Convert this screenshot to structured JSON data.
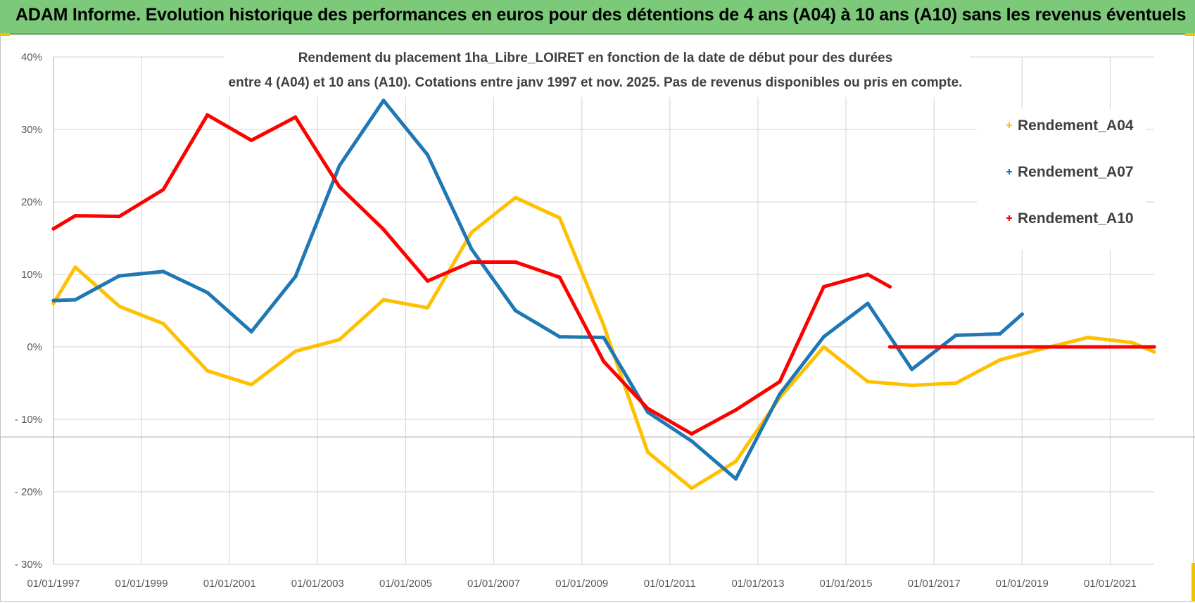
{
  "banner": {
    "title": "ADAM Informe. Evolution historique des performances en euros pour des détentions de 4 ans (A04) à 10 ans (A10) sans les revenus éventuels"
  },
  "colors": {
    "banner_bg": "#7dc97a",
    "A04": "#ffc000",
    "A07": "#1f77b4",
    "A10": "#ff0000",
    "grid": "#d9d9d9"
  },
  "chart_data": {
    "type": "line",
    "title": [
      "Rendement du placement 1ha_Libre_LOIRET en fonction de la date de début pour des durées",
      "entre 4 (A04) et 10 ans (A10).  Cotations entre janv 1997 et nov. 2025. Pas de revenus disponibles ou pris en compte."
    ],
    "xlabel": "",
    "ylabel": "",
    "x_range": [
      "1997-01-01",
      "2022-01-01"
    ],
    "x_tick_labels": [
      "01/01/1997",
      "01/01/1999",
      "01/01/2001",
      "01/01/2003",
      "01/01/2005",
      "01/01/2007",
      "01/01/2009",
      "01/01/2011",
      "01/01/2013",
      "01/01/2015",
      "01/01/2017",
      "01/01/2019",
      "01/01/2021"
    ],
    "y_tick_labels": [
      "40%",
      "30%",
      "20%",
      "10%",
      "0%",
      "- 10%",
      "- 20%",
      "- 30%"
    ],
    "ylim": [
      -30,
      40
    ],
    "grid": true,
    "legend_position": "right",
    "series": [
      {
        "name": "Rendement_A04",
        "color": "#ffc000",
        "points": [
          [
            "1997-01-01",
            6.0
          ],
          [
            "1997-07-01",
            11.0
          ],
          [
            "1998-07-01",
            5.6
          ],
          [
            "1999-07-01",
            3.2
          ],
          [
            "2000-07-01",
            -3.3
          ],
          [
            "2001-07-01",
            -5.2
          ],
          [
            "2002-07-01",
            -0.6
          ],
          [
            "2003-07-01",
            1.0
          ],
          [
            "2004-07-01",
            6.5
          ],
          [
            "2005-07-01",
            5.4
          ],
          [
            "2006-07-01",
            15.8
          ],
          [
            "2007-07-01",
            20.6
          ],
          [
            "2008-07-01",
            17.8
          ],
          [
            "2009-07-01",
            3.0
          ],
          [
            "2010-07-01",
            -14.5
          ],
          [
            "2011-07-01",
            -19.5
          ],
          [
            "2012-07-01",
            -15.8
          ],
          [
            "2013-07-01",
            -7.0
          ],
          [
            "2014-07-01",
            0.0
          ],
          [
            "2015-07-01",
            -4.8
          ],
          [
            "2016-07-01",
            -5.3
          ],
          [
            "2017-07-01",
            -5.0
          ],
          [
            "2018-07-01",
            -1.8
          ],
          [
            "2019-07-01",
            -0.2
          ],
          [
            "2020-07-01",
            1.3
          ],
          [
            "2021-07-01",
            0.6
          ],
          [
            "2022-01-01",
            -0.7
          ]
        ]
      },
      {
        "name": "Rendement_A07",
        "color": "#1f77b4",
        "points": [
          [
            "1997-01-01",
            6.4
          ],
          [
            "1997-07-01",
            6.5
          ],
          [
            "1998-07-01",
            9.8
          ],
          [
            "1999-07-01",
            10.4
          ],
          [
            "2000-07-01",
            7.5
          ],
          [
            "2001-07-01",
            2.1
          ],
          [
            "2002-07-01",
            9.7
          ],
          [
            "2003-07-01",
            25.0
          ],
          [
            "2004-07-01",
            34.0
          ],
          [
            "2005-07-01",
            26.5
          ],
          [
            "2006-07-01",
            13.5
          ],
          [
            "2007-07-01",
            5.0
          ],
          [
            "2008-07-01",
            1.4
          ],
          [
            "2009-07-01",
            1.3
          ],
          [
            "2010-07-01",
            -9.0
          ],
          [
            "2011-07-01",
            -13.0
          ],
          [
            "2012-07-01",
            -18.2
          ],
          [
            "2013-07-01",
            -6.5
          ],
          [
            "2014-07-01",
            1.4
          ],
          [
            "2015-07-01",
            6.0
          ],
          [
            "2016-07-01",
            -3.1
          ],
          [
            "2017-07-01",
            1.6
          ],
          [
            "2018-07-01",
            1.8
          ],
          [
            "2019-01-01",
            4.5
          ]
        ]
      },
      {
        "name": "Rendement_A10",
        "color": "#ff0000",
        "points": [
          [
            "1997-01-01",
            16.3
          ],
          [
            "1997-07-01",
            18.1
          ],
          [
            "1998-07-01",
            18.0
          ],
          [
            "1999-07-01",
            21.7
          ],
          [
            "2000-07-01",
            32.0
          ],
          [
            "2001-07-01",
            28.5
          ],
          [
            "2002-07-01",
            31.7
          ],
          [
            "2003-07-01",
            22.1
          ],
          [
            "2004-07-01",
            16.2
          ],
          [
            "2005-07-01",
            9.1
          ],
          [
            "2006-07-01",
            11.7
          ],
          [
            "2007-07-01",
            11.7
          ],
          [
            "2008-07-01",
            9.6
          ],
          [
            "2009-07-01",
            -2.0
          ],
          [
            "2010-07-01",
            -8.5
          ],
          [
            "2011-07-01",
            -12.0
          ],
          [
            "2012-07-01",
            -8.7
          ],
          [
            "2013-07-01",
            -4.8
          ],
          [
            "2014-07-01",
            8.3
          ],
          [
            "2015-07-01",
            10.0
          ],
          [
            "2016-01-01",
            8.3
          ]
        ]
      },
      {
        "name": "",
        "color": "#ff0000",
        "points": [
          [
            "2016-01-01",
            0.0
          ],
          [
            "2022-01-01",
            0.0
          ]
        ]
      }
    ]
  }
}
